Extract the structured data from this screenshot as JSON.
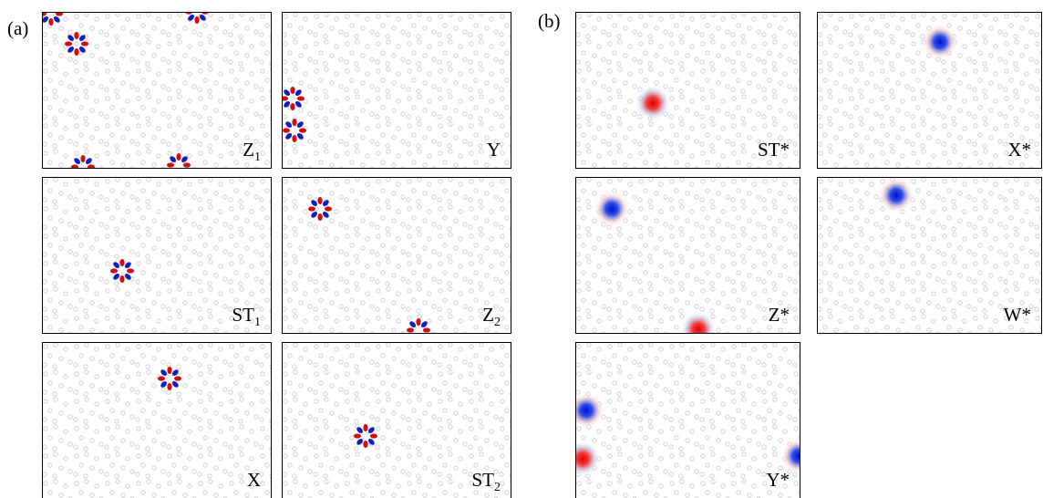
{
  "panels": [
    {
      "label": "(a)",
      "subpanels": [
        {
          "label": "Z",
          "subscript": "1"
        },
        {
          "label": "Y"
        },
        {
          "label": "ST",
          "subscript": "1"
        },
        {
          "label": "Z",
          "subscript": "2"
        },
        {
          "label": "X"
        },
        {
          "label": "ST",
          "subscript": "2"
        }
      ]
    },
    {
      "label": "(b)",
      "subpanels": [
        {
          "label": "ST*"
        },
        {
          "label": "X*"
        },
        {
          "label": "Z*"
        },
        {
          "label": "W*"
        },
        {
          "label": "Y*"
        }
      ]
    }
  ]
}
